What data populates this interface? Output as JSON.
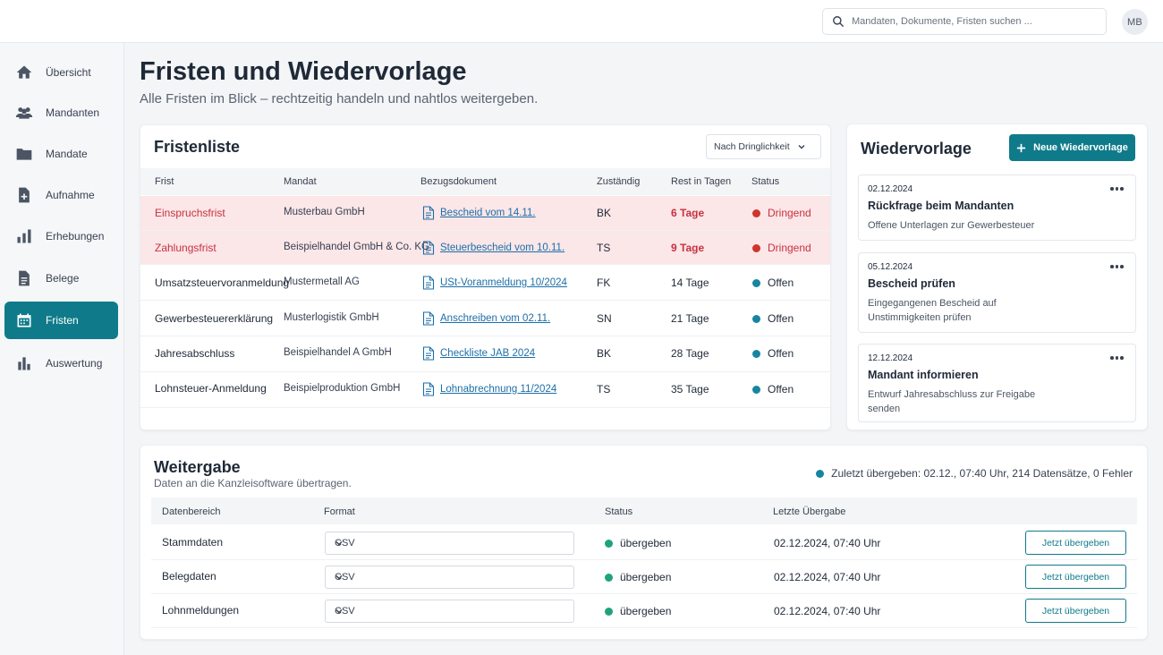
{
  "search": {
    "placeholder": "Mandaten, Dokumente, Fristen suchen ..."
  },
  "user": {
    "initials": "MB"
  },
  "sidebar": {
    "items": [
      {
        "label": "Übersicht",
        "icon": "home-icon"
      },
      {
        "label": "Mandanten",
        "icon": "users-icon"
      },
      {
        "label": "Mandate",
        "icon": "folder-icon"
      },
      {
        "label": "Aufnahme",
        "icon": "file-plus-icon"
      },
      {
        "label": "Erhebungen",
        "icon": "bar-chart-icon"
      },
      {
        "label": "Belege",
        "icon": "document-icon"
      },
      {
        "label": "Fristen",
        "icon": "calendar-icon",
        "active": true
      },
      {
        "label": "Auswertung",
        "icon": "chart-icon"
      }
    ]
  },
  "page": {
    "title": "Fristen und Wiedervorlage",
    "subtitle": "Alle Fristen im Blick – rechtzeitig handeln und nahtlos weitergeben."
  },
  "fristenliste": {
    "title": "Fristenliste",
    "sort_label": "Nach Dringlichkeit",
    "columns": [
      "Frist",
      "Mandat",
      "Bezugsdokument",
      "Zuständig",
      "Rest in Tagen",
      "Status"
    ],
    "rows": [
      {
        "frist": "Einspruchsfrist",
        "mandat": "Musterbau GmbH",
        "dokument": "Bescheid vom 14.11.",
        "zustaendig": "BK",
        "rest": "6 Tage",
        "status": "Dringend",
        "urgent": true
      },
      {
        "frist": "Zahlungsfrist",
        "mandat": "Beispielhandel GmbH & Co. KG",
        "dokument": "Steuerbescheid vom 10.11.",
        "zustaendig": "TS",
        "rest": "9 Tage",
        "status": "Dringend",
        "urgent": true
      },
      {
        "frist": "Umsatzsteuervoranmeldung",
        "mandat": "Mustermetall AG",
        "dokument": "USt-Voranmeldung 10/2024",
        "zustaendig": "FK",
        "rest": "14 Tage",
        "status": "Offen",
        "urgent": false
      },
      {
        "frist": "Gewerbesteuererklärung",
        "mandat": "Musterlogistik GmbH",
        "dokument": "Anschreiben vom 02.11.",
        "zustaendig": "SN",
        "rest": "21 Tage",
        "status": "Offen",
        "urgent": false
      },
      {
        "frist": "Jahresabschluss",
        "mandat": "Beispielhandel A GmbH",
        "dokument": "Checkliste JAB 2024",
        "zustaendig": "BK",
        "rest": "28 Tage",
        "status": "Offen",
        "urgent": false
      },
      {
        "frist": "Lohnsteuer-Anmeldung",
        "mandat": "Beispielproduktion GmbH",
        "dokument": "Lohnabrechnung 11/2024",
        "zustaendig": "TS",
        "rest": "35 Tage",
        "status": "Offen",
        "urgent": false
      }
    ]
  },
  "wiedervorlage": {
    "title": "Wiedervorlage",
    "new_button": "Neue Wiedervorlage",
    "tasks": [
      {
        "date": "02.12.2024",
        "title": "Rückfrage beim Mandanten",
        "desc": "Offene Unterlagen zur Gewerbesteuer"
      },
      {
        "date": "05.12.2024",
        "title": "Bescheid prüfen",
        "desc": "Eingegangenen Bescheid auf Unstimmigkeiten prüfen"
      },
      {
        "date": "12.12.2024",
        "title": "Mandant informieren",
        "desc": "Entwurf Jahresabschluss zur Freigabe senden"
      }
    ]
  },
  "weitergabe": {
    "title": "Weitergabe",
    "subtitle": "Daten an die Kanzleisoftware übertragen.",
    "last_status": "Zuletzt übergeben: 02.12., 07:40 Uhr, 214 Datensätze, 0 Fehler",
    "columns": [
      "Datenbereich",
      "Format",
      "Status",
      "Letzte Übergabe"
    ],
    "rows": [
      {
        "bereich": "Stammdaten",
        "format": "CSV",
        "status": "übergeben",
        "letzte": "02.12.2024, 07:40 Uhr",
        "button": "Jetzt übergeben"
      },
      {
        "bereich": "Belegdaten",
        "format": "CSV",
        "status": "übergeben",
        "letzte": "02.12.2024, 07:40 Uhr",
        "button": "Jetzt übergeben"
      },
      {
        "bereich": "Lohnmeldungen",
        "format": "CSV",
        "status": "übergeben",
        "letzte": "02.12.2024, 07:40 Uhr",
        "button": "Jetzt übergeben"
      }
    ]
  },
  "colors": {
    "accent": "#0f7b8a",
    "urgent_bg": "#fbe6e8",
    "urgent_text": "#c8323f",
    "open_dot": "#1785a0",
    "success_dot": "#1ea37e"
  }
}
